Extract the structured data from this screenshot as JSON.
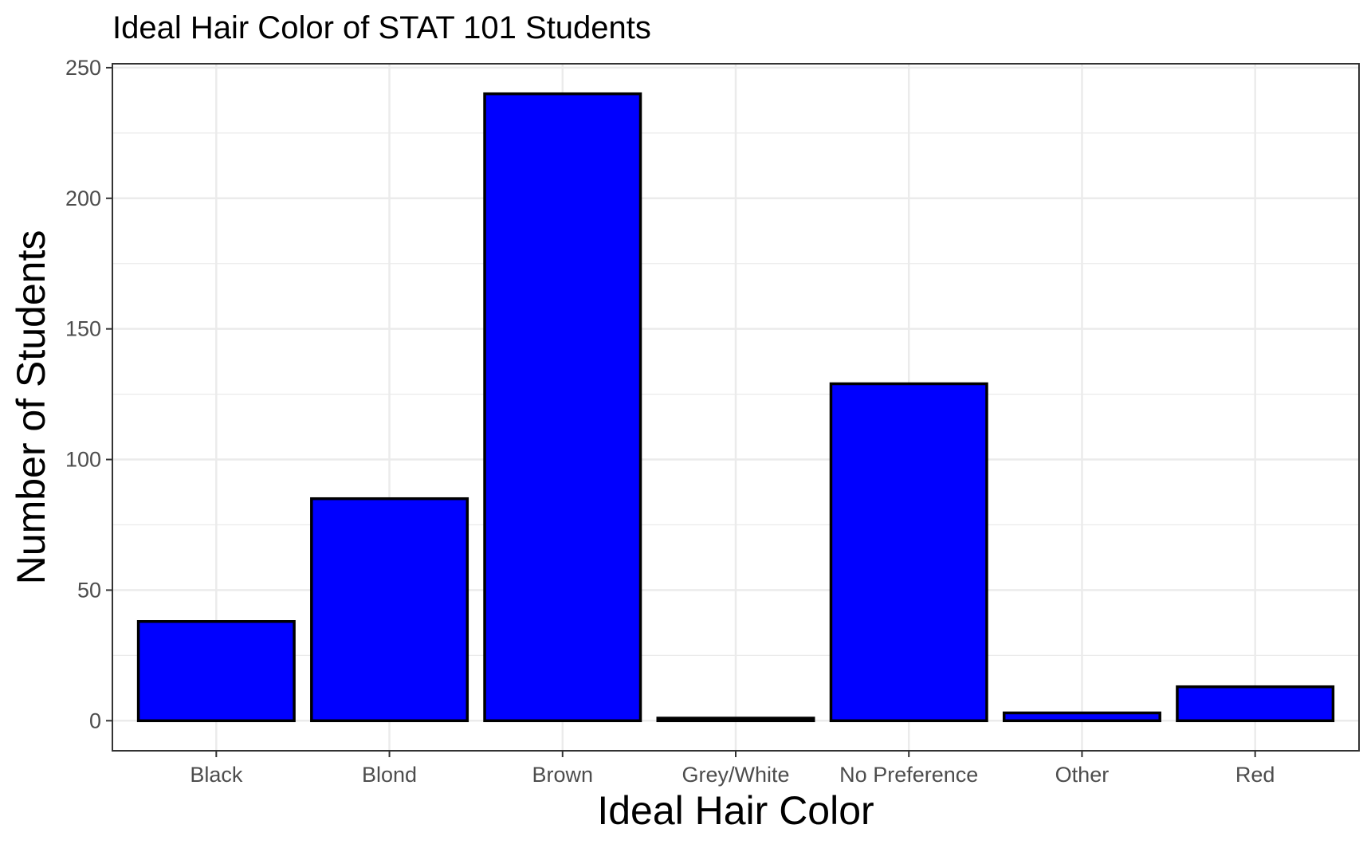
{
  "chart_data": {
    "type": "bar",
    "title": "Ideal Hair Color of STAT 101 Students",
    "xlabel": "Ideal Hair Color",
    "ylabel": "Number of Students",
    "categories": [
      "Black",
      "Blond",
      "Brown",
      "Grey/White",
      "No Preference",
      "Other",
      "Red"
    ],
    "values": [
      38,
      85,
      240,
      1,
      129,
      3,
      13
    ],
    "ylim": [
      -11.5,
      251.5
    ],
    "yticks": [
      0,
      50,
      100,
      150,
      200,
      250
    ],
    "ytick_labels": [
      "0",
      "50",
      "100",
      "150",
      "200",
      "250"
    ],
    "bar_fill": "#0000ff",
    "bar_outline": "#000000",
    "grid": true,
    "legend": "none"
  }
}
